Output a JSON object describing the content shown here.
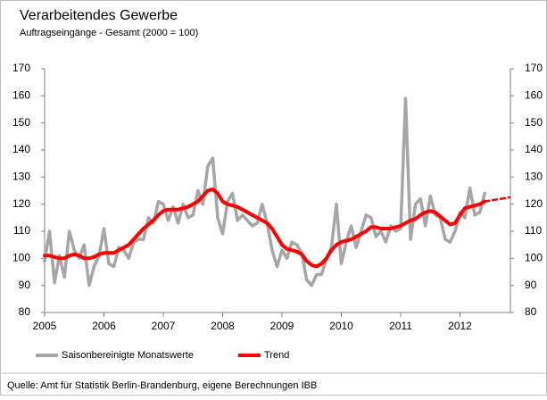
{
  "chart_data": {
    "type": "line",
    "title": "Verarbeitendes Gewerbe",
    "subtitle": "Auftragseingänge  - Gesamt (2000 = 100)",
    "source": "Quelle: Amt für Statistik Berlin-Brandenburg, eigene Berechnungen IBB",
    "categories": [
      "2005",
      null,
      null,
      null,
      null,
      null,
      null,
      null,
      null,
      null,
      null,
      null,
      "2006",
      null,
      null,
      null,
      null,
      null,
      null,
      null,
      null,
      null,
      null,
      null,
      "2007",
      null,
      null,
      null,
      null,
      null,
      null,
      null,
      null,
      null,
      null,
      null,
      "2008",
      null,
      null,
      null,
      null,
      null,
      null,
      null,
      null,
      null,
      null,
      null,
      "2009",
      null,
      null,
      null,
      null,
      null,
      null,
      null,
      null,
      null,
      null,
      null,
      "2010",
      null,
      null,
      null,
      null,
      null,
      null,
      null,
      null,
      null,
      null,
      null,
      "2011",
      null,
      null,
      null,
      null,
      null,
      null,
      null,
      null,
      null,
      null,
      null,
      "2012",
      null,
      null,
      null,
      null,
      null,
      null,
      null,
      null,
      null,
      null
    ],
    "series": [
      {
        "name": "Saisonbereinigte Monatswerte",
        "color": "#a6a6a6",
        "values": [
          99,
          110,
          91,
          101,
          93,
          110,
          103,
          100,
          105,
          90,
          97,
          101,
          111,
          98,
          97,
          104,
          103,
          100,
          106,
          107,
          107,
          115,
          113,
          121,
          120,
          114,
          119,
          113,
          120,
          115,
          116,
          125,
          120,
          134,
          137,
          115,
          109,
          121,
          124,
          114,
          116,
          114,
          112,
          113,
          120,
          113,
          103,
          97,
          103,
          100,
          106,
          105,
          102,
          92,
          90,
          94,
          94,
          100,
          104,
          120,
          98,
          106,
          112,
          104,
          110,
          116,
          115,
          108,
          110,
          106,
          112,
          110,
          111,
          159,
          107,
          120,
          122,
          112,
          123,
          116,
          115,
          107,
          106,
          110,
          117,
          115,
          126,
          116,
          117,
          124,
          null,
          null,
          null,
          null,
          null
        ]
      },
      {
        "name": "Trend",
        "color": "#ff0000",
        "values": [
          101,
          101,
          100.5,
          100,
          100,
          101,
          101.5,
          101,
          100,
          100,
          100.5,
          101.5,
          102,
          102,
          102,
          103,
          104,
          105,
          107,
          109,
          111,
          112.5,
          114,
          116,
          117.5,
          118,
          118,
          118,
          118.5,
          119,
          120,
          121,
          123,
          125,
          125.5,
          124,
          121,
          120,
          119.5,
          119,
          118,
          117,
          116,
          115,
          114,
          113,
          111,
          108,
          105,
          103.5,
          103,
          102.5,
          101.5,
          99,
          97.5,
          97,
          98,
          100,
          103,
          105,
          106,
          106.5,
          107,
          108,
          109,
          110,
          111.5,
          111.5,
          111,
          111,
          111,
          111.5,
          112,
          113,
          114,
          114.5,
          116,
          117,
          117.5,
          117,
          115.5,
          114,
          112.5,
          113,
          116,
          118.5,
          119,
          119.5,
          120,
          121,
          null,
          null,
          null,
          null,
          null
        ],
        "forecast_values": [
          null,
          null,
          null,
          null,
          null,
          null,
          null,
          null,
          null,
          null,
          null,
          null,
          null,
          null,
          null,
          null,
          null,
          null,
          null,
          null,
          null,
          null,
          null,
          null,
          null,
          null,
          null,
          null,
          null,
          null,
          null,
          null,
          null,
          null,
          null,
          null,
          null,
          null,
          null,
          null,
          null,
          null,
          null,
          null,
          null,
          null,
          null,
          null,
          null,
          null,
          null,
          null,
          null,
          null,
          null,
          null,
          null,
          null,
          null,
          null,
          null,
          null,
          null,
          null,
          null,
          null,
          null,
          null,
          null,
          null,
          null,
          null,
          null,
          null,
          null,
          null,
          null,
          null,
          null,
          null,
          null,
          null,
          null,
          null,
          null,
          null,
          null,
          null,
          null,
          121,
          121.3,
          121.6,
          121.9,
          122.2,
          122.5
        ]
      }
    ],
    "ylim": [
      80,
      170
    ],
    "yticks": [
      80,
      90,
      100,
      110,
      120,
      130,
      140,
      150,
      160,
      170
    ],
    "y2lim": [
      80,
      170
    ],
    "y2ticks": [
      80,
      90,
      100,
      110,
      120,
      130,
      140,
      150,
      160,
      170
    ],
    "grid": false,
    "legend": "bottom"
  }
}
